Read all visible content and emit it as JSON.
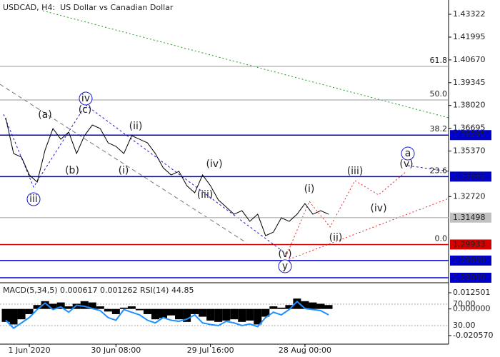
{
  "chart_data": [
    {
      "type": "line",
      "title": "USDCAD, H4:  US Dollar vs Canadian Dollar",
      "categories": [
        null,
        null,
        null,
        "1 Jun 2020",
        null,
        null,
        null,
        null,
        null,
        null,
        null,
        null,
        null,
        null,
        "30 Jun 08:00",
        null,
        null,
        null,
        null,
        null,
        null,
        null,
        null,
        null,
        null,
        null,
        "29 Jul 16:00",
        null,
        null,
        null,
        null,
        null,
        null,
        null,
        null,
        null,
        null,
        null,
        "28 Aug 00:00",
        null,
        null,
        null
      ],
      "series": [
        {
          "color": "#000000",
          "values": [
            1.373,
            1.35224,
            1.35016,
            1.33978,
            1.33563,
            1.35432,
            1.36677,
            1.36055,
            1.3647,
            1.35224,
            1.36262,
            1.36885,
            1.36677,
            1.35847,
            1.35639,
            1.35224,
            1.36262,
            1.36055,
            1.35847,
            1.35224,
            1.34393,
            1.33978,
            1.34186,
            1.33355,
            1.3294,
            1.33978,
            1.33355,
            1.32525,
            1.32109,
            1.31694,
            1.31902,
            1.31279,
            1.31694,
            1.30448,
            1.30656,
            1.31486,
            1.31279,
            1.31694,
            1.32317,
            1.31694,
            1.31902,
            1.31694
          ]
        }
      ],
      "ylim": [
        1.27751,
        1.44153
      ],
      "yticks": [
        1.43322,
        1.41995,
        {
          "value": 1.4067,
          "label": "1.40670"
        },
        1.39345,
        {
          "value": 1.3802,
          "label": "1.38020"
        },
        1.36695,
        {
          "value": 1.3537,
          "label": "1.35370"
        },
        {
          "value": 1.3272,
          "label": "1.32720"
        }
      ],
      "levels": [
        {
          "value": 1.36295,
          "label": "1.36295",
          "color": "#0000c8"
        },
        {
          "value": 1.33882,
          "label": "1.33882",
          "color": "#0000c8"
        },
        {
          "value": 1.31498,
          "label": "1.31498",
          "color": "#c0c0c0"
        },
        {
          "value": 1.29933,
          "label": "1.29933",
          "color": "#d40000"
        },
        {
          "value": 1.29,
          "label": "1.29000",
          "color": "#0000c8"
        },
        {
          "value": 1.28,
          "label": "1.28000",
          "color": "#0000c8"
        }
      ],
      "fib_levels": [
        {
          "value": 1.4029,
          "label": "61.8"
        },
        {
          "value": 1.38339,
          "label": "50.0"
        },
        {
          "value": 1.36295,
          "label": "38.2"
        },
        {
          "value": 1.33882,
          "label": "23.6"
        },
        {
          "value": 1.29933,
          "label": "0.0"
        }
      ],
      "annotations": [
        {
          "text": "(a)",
          "color": "#e8231f"
        },
        {
          "text": "(b)",
          "color": "#e8231f"
        },
        {
          "text": "(c)",
          "color": "#e8231f"
        },
        {
          "text": "iv",
          "color": "#1a1ad0",
          "circled": true
        },
        {
          "text": "iii",
          "color": "#1a1ad0",
          "circled": true
        },
        {
          "text": "(i)",
          "color": "#e8231f"
        },
        {
          "text": "(ii)",
          "color": "#e8231f"
        },
        {
          "text": "(iii)",
          "color": "#e8231f"
        },
        {
          "text": "(iv)",
          "color": "#e8231f"
        },
        {
          "text": "(v)",
          "color": "#e8231f"
        },
        {
          "text": "y",
          "color": "#1a1ad0",
          "circled": true
        },
        {
          "text": "(i)",
          "color": "#e8231f"
        },
        {
          "text": "(ii)",
          "color": "#e8231f"
        },
        {
          "text": "(iii)",
          "color": "#e8231f"
        },
        {
          "text": "(iv)",
          "color": "#e8231f"
        },
        {
          "text": "(v)",
          "color": "#e8231f"
        },
        {
          "text": "a",
          "color": "#1a1ad0",
          "circled": true
        }
      ]
    },
    {
      "type": "bar",
      "title": "MACD(5,34,5) 0.000617 0.001262 RSI(14) 44.85",
      "series": [
        {
          "color": "#000000",
          "values": [
            -0.01,
            -0.012,
            -0.008,
            -0.004,
            0.003,
            0.006,
            0.004,
            0.005,
            0.002,
            0.004,
            0.006,
            0.005,
            0.002,
            -0.002,
            -0.004,
            0.001,
            0.002,
            -0.001,
            -0.004,
            -0.008,
            -0.007,
            -0.005,
            -0.008,
            -0.01,
            -0.004,
            -0.006,
            -0.009,
            -0.01,
            -0.009,
            -0.008,
            -0.01,
            -0.009,
            -0.012,
            -0.006,
            0.002,
            0.001,
            0.003,
            0.008,
            0.006,
            0.005,
            0.004,
            0.003
          ]
        },
        {
          "color": "#1e90ff",
          "axis": "y2",
          "values": [
            40,
            25,
            35,
            45,
            60,
            72,
            60,
            65,
            55,
            68,
            66,
            62,
            58,
            45,
            40,
            60,
            55,
            50,
            40,
            35,
            45,
            40,
            38,
            42,
            50,
            35,
            32,
            30,
            38,
            35,
            30,
            33,
            28,
            45,
            55,
            50,
            60,
            75,
            62,
            60,
            58,
            50
          ]
        }
      ],
      "ylim": [
        -0.02608,
        0.01967
      ],
      "yticks": [
        0.012501,
        {
          "value": 0,
          "label": "0.000000"
        },
        {
          "value": -0.02057,
          "label": "-0.020570"
        }
      ],
      "y2lim": [
        -2,
        108.7
      ],
      "y2ticks": [
        {
          "value": 70,
          "label": "70.00"
        },
        {
          "value": 30,
          "label": "30.00"
        }
      ]
    }
  ]
}
